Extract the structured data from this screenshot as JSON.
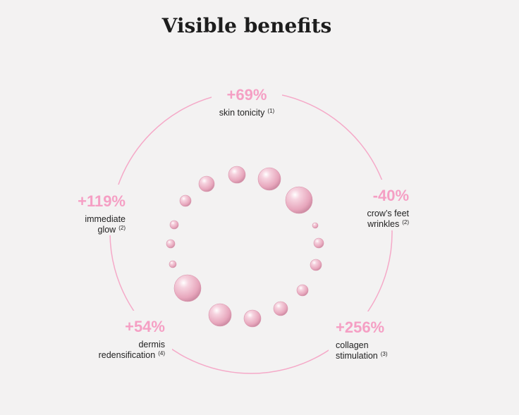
{
  "title": "Visible benefits",
  "benefits": [
    {
      "value": "+69%",
      "label": [
        "skin tonicity"
      ],
      "note": "(1)"
    },
    {
      "value": "-40%",
      "label": [
        "crow’s feet",
        "wrinkles"
      ],
      "note": "(2)"
    },
    {
      "value": "+256%",
      "label": [
        "collagen",
        "stimulation"
      ],
      "note": "(3)"
    },
    {
      "value": "+54%",
      "label": [
        "dermis",
        "redensification"
      ],
      "note": "(4)"
    },
    {
      "value": "+119%",
      "label": [
        "immediate",
        "glow"
      ],
      "note": "(2)"
    }
  ]
}
